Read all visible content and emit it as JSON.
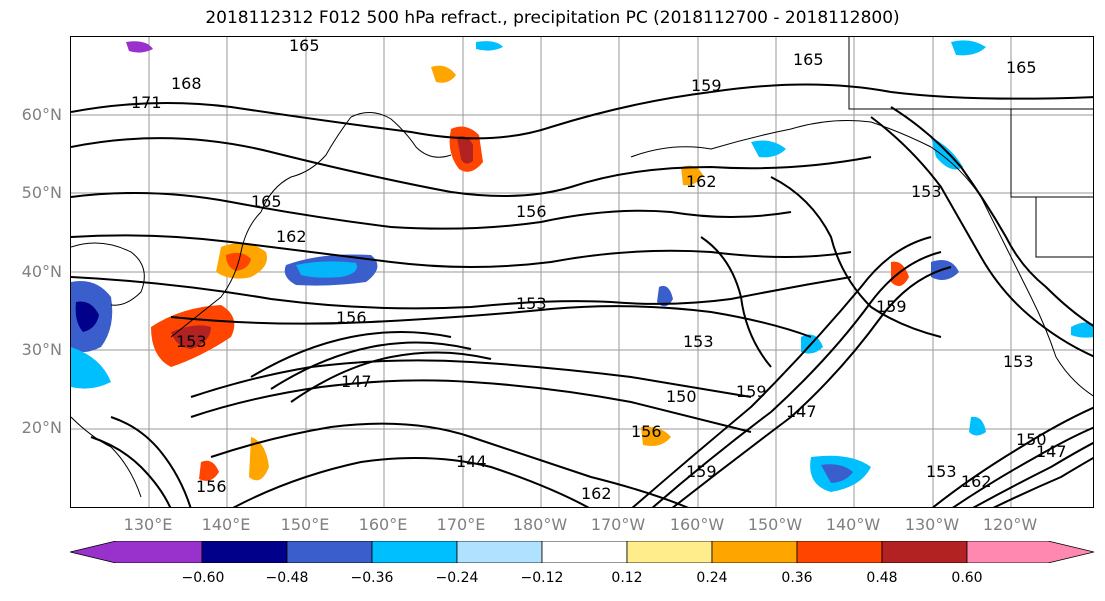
{
  "title": "2018112312 F012 500 hPa refract., precipitation PC (2018112700 - 2018112800)",
  "lat_labels": [
    "60°N",
    "50°N",
    "40°N",
    "30°N",
    "20°N"
  ],
  "lon_labels": [
    "130°E",
    "140°E",
    "150°E",
    "160°E",
    "170°E",
    "180°W",
    "170°W",
    "160°W",
    "150°W",
    "140°W",
    "130°W",
    "120°W"
  ],
  "contour_labels": [
    "165",
    "168",
    "171",
    "159",
    "165",
    "165",
    "165",
    "162",
    "156",
    "162",
    "153",
    "153",
    "156",
    "153",
    "153",
    "150",
    "159",
    "153",
    "147",
    "144",
    "156",
    "159",
    "162",
    "147",
    "150",
    "147",
    "159",
    "153",
    "156",
    "162"
  ],
  "colorbar": {
    "ticks": [
      "−0.60",
      "−0.48",
      "−0.36",
      "−0.24",
      "−0.12",
      "0.12",
      "0.24",
      "0.36",
      "0.48",
      "0.60"
    ],
    "colors": [
      "#9932cc",
      "#00008b",
      "#3a5fcd",
      "#00bfff",
      "#b0e2ff",
      "#ffffff",
      "#ffec8b",
      "#ffa500",
      "#ff4500",
      "#b22222",
      "#ff88b0"
    ]
  }
}
